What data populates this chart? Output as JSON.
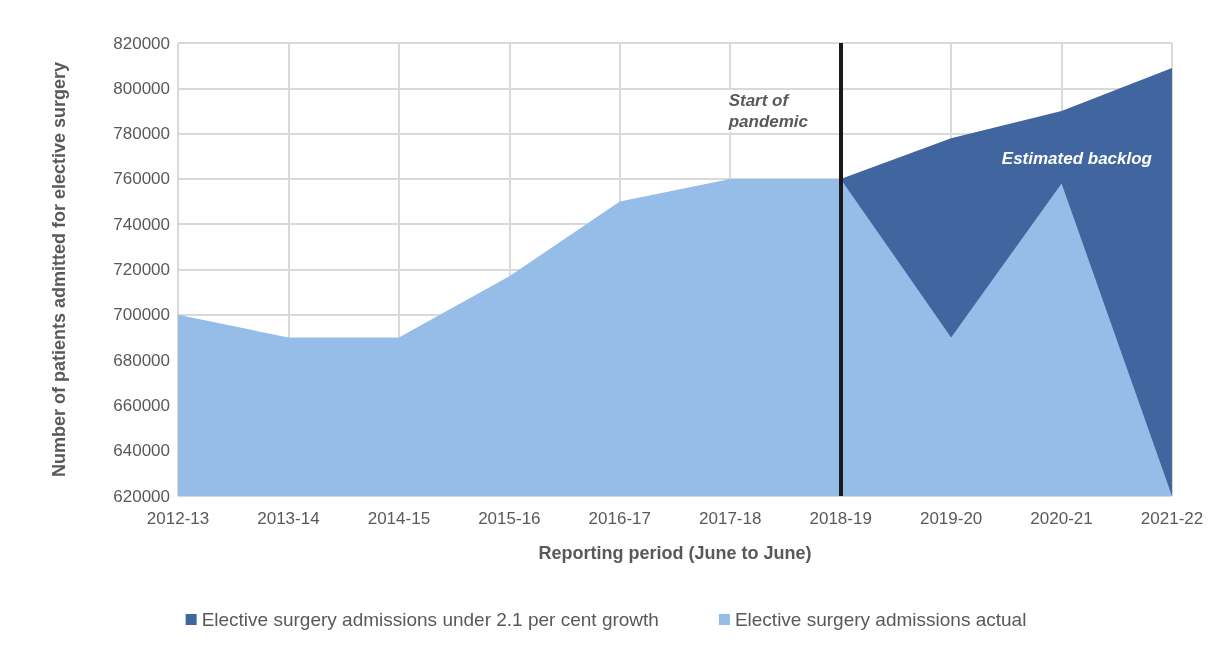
{
  "chart_data": {
    "type": "area",
    "xlabel": "Reporting period (June to June)",
    "ylabel": "Number of patients admitted for elective surgery",
    "categories": [
      "2012-13",
      "2013-14",
      "2014-15",
      "2015-16",
      "2016-17",
      "2017-18",
      "2018-19",
      "2019-20",
      "2020-21",
      "2021-22"
    ],
    "series": [
      {
        "name": "Elective surgery admissions under 2.1 per cent growth",
        "color": "#40659f",
        "values": [
          null,
          null,
          null,
          null,
          null,
          null,
          760000,
          778000,
          790000,
          809000
        ]
      },
      {
        "name": "Elective surgery admissions actual",
        "color": "#95bde8",
        "values": [
          700000,
          690000,
          690000,
          717000,
          750000,
          760000,
          760000,
          690000,
          758000,
          620000
        ]
      }
    ],
    "ylim": [
      620000,
      820000
    ],
    "yticks": [
      620000,
      640000,
      660000,
      680000,
      700000,
      720000,
      740000,
      760000,
      780000,
      800000,
      820000
    ],
    "ref_lines": [
      {
        "axis": "x",
        "value": "2018-19",
        "label": "Start of pandemic",
        "color": "#1a1a1a"
      }
    ],
    "annotations": [
      "Estimated backlog"
    ],
    "grid": true,
    "legend": "bottom",
    "marker": "none"
  }
}
